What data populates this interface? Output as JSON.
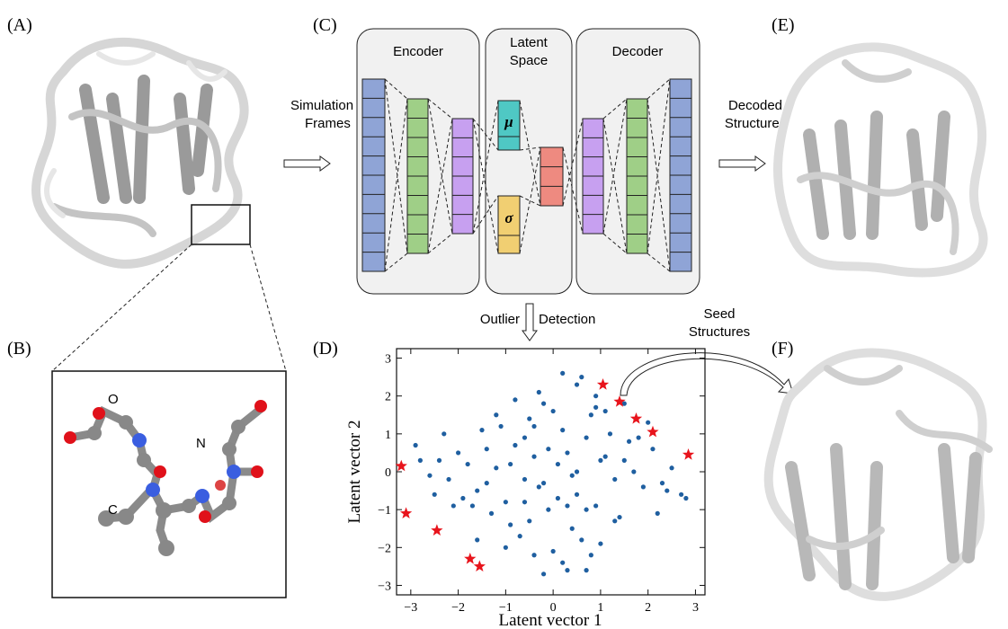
{
  "panel_labels": [
    "(A)",
    "(B)",
    "(C)",
    "(D)",
    "(E)",
    "(F)"
  ],
  "atom_labels": [
    "O",
    "N",
    "C"
  ],
  "diagram": {
    "encoder": "Encoder",
    "latent": [
      "Latent",
      "Space"
    ],
    "decoder": "Decoder",
    "mu": "μ",
    "sigma": "σ",
    "input": [
      "Simulation",
      "Frames"
    ],
    "output": [
      "Decoded",
      "Structures"
    ],
    "outlier": [
      "Outlier",
      "Detection"
    ],
    "seed": [
      "Seed",
      "Structures"
    ]
  },
  "chart_data": {
    "type": "scatter",
    "xlabel": "Latent vector 1",
    "ylabel": "Latent vector 2",
    "xlim": [
      -3.3,
      3.2
    ],
    "ylim": [
      -3.25,
      3.25
    ],
    "xticks": [
      {
        "value": -3,
        "label": "−3"
      },
      {
        "value": -2,
        "label": "−2"
      },
      {
        "value": -1,
        "label": "−1"
      },
      0,
      1,
      2,
      3
    ],
    "yticks": [
      {
        "value": -3,
        "label": "−3"
      },
      {
        "value": -2,
        "label": "−2"
      },
      {
        "value": -1,
        "label": "−1"
      },
      0,
      1,
      2,
      3
    ],
    "series": [
      {
        "color": "#1f5fa0",
        "marker": "circle",
        "x": [
          0.1,
          -0.2,
          0.3,
          -0.4,
          0.5,
          -0.6,
          0.2,
          -0.1,
          0.7,
          -0.8,
          0.9,
          -1.0,
          1.1,
          -1.2,
          1.3,
          -1.4,
          1.5,
          -1.6,
          1.7,
          -1.8,
          1.9,
          -2.0,
          2.1,
          -2.2,
          2.3,
          -2.4,
          2.5,
          -2.6,
          2.7,
          -2.8,
          0.0,
          0.4,
          -0.5,
          0.8,
          -0.9,
          0.6,
          -0.3,
          1.0,
          -1.1,
          0.2,
          -0.7,
          1.2,
          -1.3,
          0.9,
          -0.2,
          0.5,
          -0.6,
          1.4,
          -1.5,
          0.3,
          -0.4,
          1.6,
          -1.7,
          0.1,
          -0.1,
          0.7,
          -0.8,
          2.0,
          -2.1,
          2.4,
          -2.5,
          2.8,
          -2.9,
          0.6,
          0.9,
          -1.0,
          0.4,
          -0.3,
          1.1,
          -1.2,
          0.2,
          0.8,
          -0.5,
          1.3,
          -1.4,
          -0.2,
          0.0,
          1.8,
          -1.9,
          2.2,
          -2.3,
          0.5,
          1.0,
          -0.6,
          -0.9,
          0.3,
          0.7,
          -0.4,
          1.5,
          -1.6
        ],
        "values": [
          0.2,
          -0.3,
          0.5,
          0.4,
          -0.6,
          -0.2,
          1.1,
          -1.0,
          0.9,
          0.7,
          -0.9,
          -0.8,
          0.4,
          0.1,
          -0.2,
          0.6,
          0.3,
          -0.5,
          0.0,
          0.2,
          -0.4,
          0.5,
          0.6,
          -0.2,
          -0.3,
          0.3,
          0.1,
          -0.1,
          -0.6,
          0.3,
          1.6,
          -1.5,
          1.4,
          1.5,
          -1.4,
          -1.8,
          2.1,
          -1.9,
          1.2,
          -2.4,
          -1.7,
          1.0,
          -1.1,
          2.0,
          1.8,
          2.3,
          0.9,
          -1.2,
          1.1,
          -2.6,
          -2.2,
          0.8,
          -0.9,
          -0.7,
          0.6,
          -2.6,
          1.9,
          1.3,
          -0.9,
          -0.5,
          -0.6,
          -0.7,
          0.7,
          2.5,
          1.7,
          -2.0,
          -0.1,
          -0.4,
          1.6,
          1.5,
          2.6,
          -2.2,
          -1.3,
          -1.3,
          -0.3,
          -2.7,
          -2.1,
          0.9,
          -0.7,
          -1.1,
          1.0,
          0.0,
          0.3,
          -0.8,
          0.2,
          -0.9,
          -1.0,
          1.2,
          1.8,
          -1.8
        ]
      },
      {
        "color": "#e8141c",
        "marker": "star",
        "x": [
          1.05,
          1.4,
          1.75,
          2.1,
          2.85,
          -3.2,
          -3.1,
          -2.45,
          -1.75,
          -1.55
        ],
        "values": [
          2.3,
          1.85,
          1.4,
          1.05,
          0.45,
          0.15,
          -1.1,
          -1.55,
          -2.3,
          -2.5
        ]
      }
    ]
  }
}
